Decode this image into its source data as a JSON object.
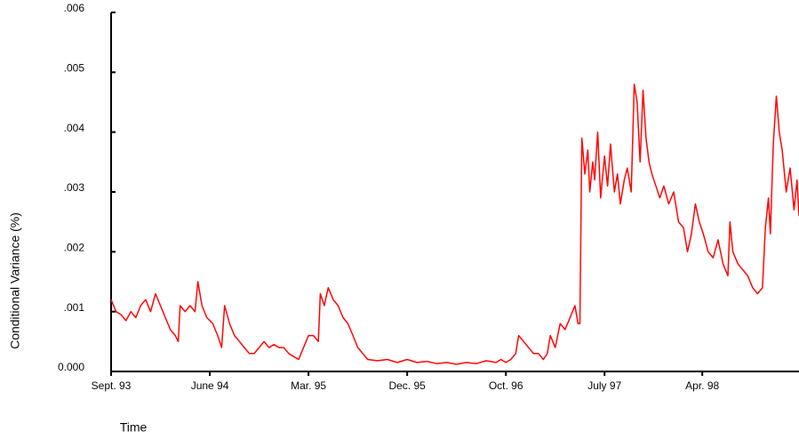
{
  "chart_data": {
    "type": "line",
    "y_label": "Conditional Variance (%)",
    "x_label": "Time",
    "color": "#ff0000",
    "xlim": [
      0,
      697
    ],
    "xticks": [
      {
        "value": 0,
        "label": "Sept. 93"
      },
      {
        "value": 100,
        "label": "June 94"
      },
      {
        "value": 200,
        "label": "Mar. 95"
      },
      {
        "value": 300,
        "label": "Dec. 95"
      },
      {
        "value": 400,
        "label": "Oct. 96"
      },
      {
        "value": 500,
        "label": "July 97"
      },
      {
        "value": 599,
        "label": "Apr. 98"
      }
    ],
    "ylim": [
      0,
      0.006
    ],
    "yticks": [
      {
        "value": 0,
        "label": "0.000"
      },
      {
        "value": 0.001,
        "label": ".001"
      },
      {
        "value": 0.002,
        "label": ".002"
      },
      {
        "value": 0.003,
        "label": ".003"
      },
      {
        "value": 0.004,
        "label": ".004"
      },
      {
        "value": 0.005,
        "label": ".005"
      },
      {
        "value": 0.006,
        "label": ".006"
      }
    ],
    "x": [
      0,
      5,
      10,
      15,
      20,
      25,
      30,
      35,
      40,
      45,
      50,
      55,
      60,
      65,
      68,
      70,
      75,
      80,
      85,
      88,
      92,
      97,
      103,
      108,
      112,
      115,
      120,
      125,
      130,
      135,
      140,
      145,
      150,
      155,
      160,
      165,
      170,
      175,
      180,
      185,
      190,
      195,
      200,
      205,
      210,
      212,
      216,
      220,
      225,
      230,
      235,
      240,
      245,
      250,
      255,
      260,
      270,
      280,
      290,
      300,
      310,
      320,
      330,
      340,
      350,
      360,
      370,
      380,
      390,
      395,
      400,
      405,
      410,
      413,
      418,
      423,
      428,
      433,
      438,
      442,
      445,
      450,
      455,
      460,
      465,
      470,
      473,
      475,
      477,
      480,
      483,
      485,
      488,
      490,
      493,
      496,
      500,
      503,
      506,
      510,
      513,
      516,
      520,
      523,
      527,
      530,
      533,
      536,
      539,
      542,
      545,
      548,
      552,
      556,
      560,
      565,
      570,
      575,
      580,
      584,
      588,
      592,
      596,
      600,
      605,
      610,
      615,
      620,
      625,
      627,
      630,
      635,
      640,
      645,
      650,
      655,
      660,
      663,
      666,
      668,
      671,
      674,
      677,
      680,
      684,
      688,
      692,
      695,
      697
    ],
    "values": [
      0.0012,
      0.001,
      0.00095,
      0.00085,
      0.001,
      0.0009,
      0.0011,
      0.0012,
      0.001,
      0.0013,
      0.0011,
      0.0009,
      0.0007,
      0.0006,
      0.0005,
      0.0011,
      0.001,
      0.0011,
      0.001,
      0.0015,
      0.0011,
      0.0009,
      0.0008,
      0.0006,
      0.0004,
      0.0011,
      0.0008,
      0.0006,
      0.0005,
      0.0004,
      0.0003,
      0.0003,
      0.0004,
      0.0005,
      0.0004,
      0.00045,
      0.0004,
      0.0004,
      0.0003,
      0.00025,
      0.0002,
      0.0004,
      0.0006,
      0.0006,
      0.0005,
      0.0013,
      0.0011,
      0.0014,
      0.0012,
      0.0011,
      0.0009,
      0.0008,
      0.0006,
      0.0004,
      0.0003,
      0.0002,
      0.00018,
      0.0002,
      0.00015,
      0.0002,
      0.00015,
      0.00017,
      0.00013,
      0.00015,
      0.00012,
      0.00015,
      0.00013,
      0.00018,
      0.00015,
      0.0002,
      0.00015,
      0.0002,
      0.0003,
      0.0006,
      0.0005,
      0.0004,
      0.0003,
      0.0003,
      0.0002,
      0.0003,
      0.0006,
      0.0004,
      0.0008,
      0.0007,
      0.0009,
      0.0011,
      0.0008,
      0.0008,
      0.0039,
      0.0033,
      0.0037,
      0.003,
      0.0035,
      0.0032,
      0.004,
      0.0029,
      0.0036,
      0.0031,
      0.0038,
      0.003,
      0.0033,
      0.0028,
      0.0032,
      0.0034,
      0.003,
      0.0048,
      0.0045,
      0.0035,
      0.0047,
      0.0039,
      0.0035,
      0.0033,
      0.0031,
      0.0029,
      0.0031,
      0.0028,
      0.003,
      0.0025,
      0.0024,
      0.002,
      0.0023,
      0.0028,
      0.0025,
      0.0023,
      0.002,
      0.0019,
      0.0022,
      0.0018,
      0.0016,
      0.0025,
      0.002,
      0.0018,
      0.0017,
      0.0016,
      0.0014,
      0.0013,
      0.0014,
      0.0024,
      0.0029,
      0.0023,
      0.0038,
      0.0046,
      0.004,
      0.0037,
      0.003,
      0.0034,
      0.0027,
      0.0032,
      0.0026
    ]
  }
}
